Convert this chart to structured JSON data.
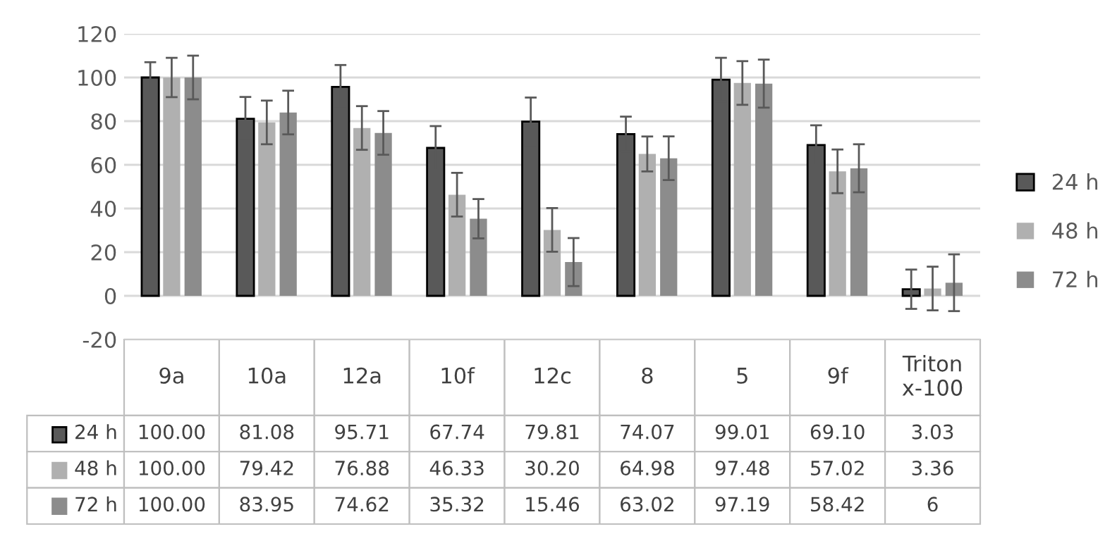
{
  "chart_data": {
    "type": "bar",
    "categories": [
      "9a",
      "10a",
      "12a",
      "10f",
      "12c",
      "8",
      "5",
      "9f",
      "Triton x-100"
    ],
    "series": [
      {
        "name": "24 h",
        "color": "#595959",
        "values": [
          100.0,
          81.08,
          95.71,
          67.74,
          79.81,
          74.07,
          99.01,
          69.1,
          3.03
        ],
        "errors": [
          7,
          10,
          10,
          10,
          11,
          8,
          10,
          9,
          9
        ],
        "value_labels": [
          "100.00",
          "81.08",
          "95.71",
          "67.74",
          "79.81",
          "74.07",
          "99.01",
          "69.10",
          "3.03"
        ]
      },
      {
        "name": "48 h",
        "color": "#b0b0b0",
        "values": [
          100.0,
          79.42,
          76.88,
          46.33,
          30.2,
          64.98,
          97.48,
          57.02,
          3.36
        ],
        "errors": [
          9,
          10,
          10,
          10,
          10,
          8,
          10,
          10,
          10
        ],
        "value_labels": [
          "100.00",
          "79.42",
          "76.88",
          "46.33",
          "30.20",
          "64.98",
          "97.48",
          "57.02",
          "3.36"
        ]
      },
      {
        "name": "72 h",
        "color": "#8c8c8c",
        "values": [
          100.0,
          83.95,
          74.62,
          35.32,
          15.46,
          63.02,
          97.19,
          58.42,
          6
        ],
        "errors": [
          10,
          10,
          10,
          9,
          11,
          10,
          11,
          11,
          13
        ],
        "value_labels": [
          "100.00",
          "83.95",
          "74.62",
          "35.32",
          "15.46",
          "63.02",
          "97.19",
          "58.42",
          "6"
        ]
      }
    ],
    "ylim": [
      -20,
      120
    ],
    "yticks": [
      -20,
      0,
      20,
      40,
      60,
      80,
      100,
      120
    ],
    "grid": "y",
    "legend": "right"
  }
}
